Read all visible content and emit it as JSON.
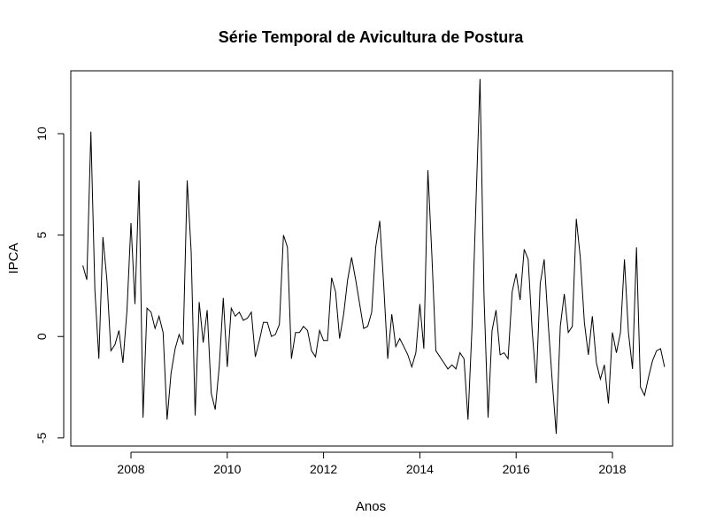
{
  "chart_data": {
    "type": "line",
    "title": "Série Temporal de Avicultura de Postura",
    "xlabel": "Anos",
    "ylabel": "IPCA",
    "xlim": [
      2006.75,
      2019.25
    ],
    "ylim": [
      -5.4,
      13.1
    ],
    "x_ticks": [
      "2008",
      "2010",
      "2012",
      "2014",
      "2016",
      "2018"
    ],
    "y_ticks": [
      "-5",
      "0",
      "5",
      "10"
    ],
    "grid": false,
    "legend": "none",
    "line_color": "#000000",
    "x_start": "2007-01",
    "x_frequency": "monthly",
    "series": [
      {
        "values": [
          3.5,
          2.8,
          10.1,
          2.3,
          -1.1,
          4.9,
          2.8,
          -0.7,
          -0.4,
          0.3,
          -1.3,
          1.3,
          5.6,
          1.6,
          7.7,
          -4.0,
          1.4,
          1.2,
          0.4,
          1.0,
          0.2,
          -4.1,
          -1.8,
          -0.6,
          0.1,
          -0.4,
          7.7,
          4.2,
          -3.9,
          1.7,
          -0.3,
          1.3,
          -2.8,
          -3.6,
          -1.5,
          1.9,
          -1.5,
          1.4,
          1.0,
          1.2,
          0.8,
          0.9,
          1.2,
          -1.0,
          -0.2,
          0.7,
          0.7,
          0.0,
          0.1,
          0.6,
          5.0,
          4.4,
          -1.1,
          0.2,
          0.2,
          0.5,
          0.3,
          -0.7,
          -1.0,
          0.3,
          -0.2,
          -0.2,
          2.9,
          2.2,
          -0.1,
          1.1,
          2.8,
          3.9,
          2.8,
          1.6,
          0.4,
          0.5,
          1.2,
          4.4,
          5.7,
          2.5,
          -1.1,
          1.1,
          -0.5,
          -0.1,
          -0.5,
          -0.9,
          -1.5,
          -0.8,
          1.6,
          -0.6,
          8.2,
          4.0,
          -0.7,
          -1.0,
          -1.3,
          -1.6,
          -1.4,
          -1.6,
          -0.8,
          -1.1,
          -4.1,
          0.4,
          6.7,
          12.7,
          2.0,
          -4.0,
          0.3,
          1.3,
          -0.9,
          -0.8,
          -1.1,
          2.2,
          3.1,
          1.8,
          4.3,
          3.8,
          0.3,
          -2.3,
          2.6,
          3.8,
          0.6,
          -2.2,
          -4.8,
          0.5,
          2.1,
          0.2,
          0.5,
          5.8,
          3.9,
          0.7,
          -0.9,
          1.0,
          -1.3,
          -2.1,
          -1.4,
          -3.3,
          0.2,
          -0.8,
          0.2,
          3.8,
          0.2,
          -1.6,
          4.4,
          -2.5,
          -2.9,
          -2.0,
          -1.2,
          -0.7,
          -0.6,
          -1.5
        ]
      }
    ]
  }
}
